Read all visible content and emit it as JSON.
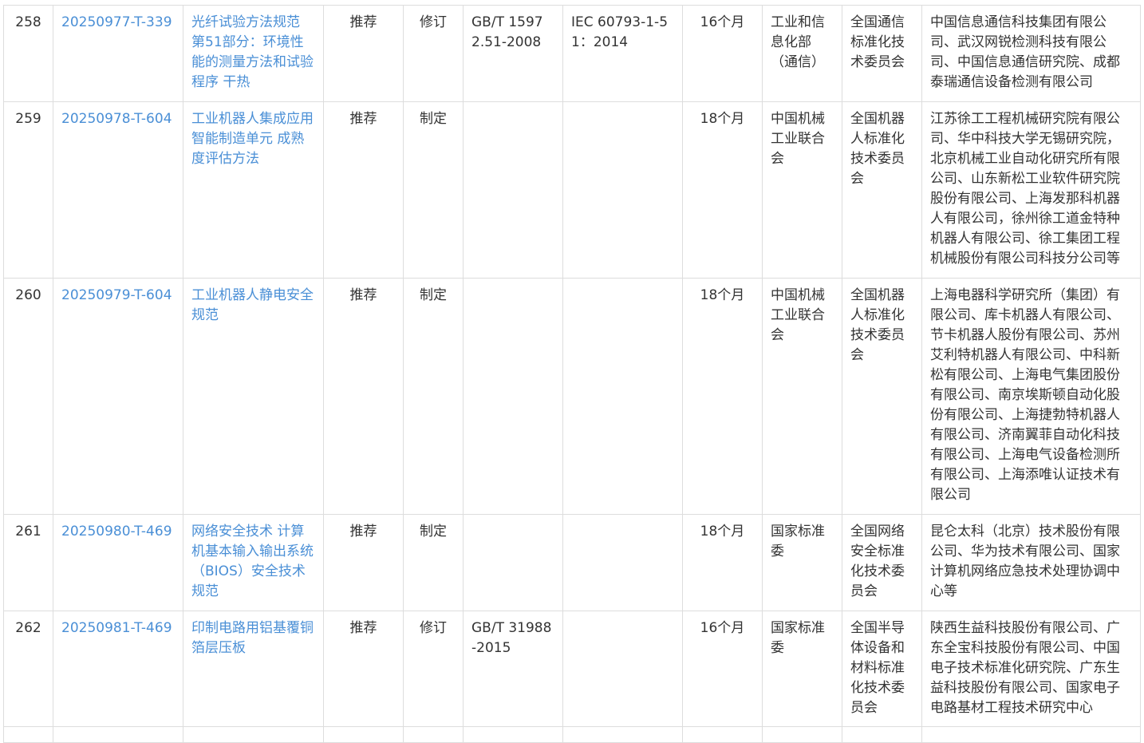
{
  "link_color": "#4a8fd6",
  "rows": [
    {
      "no": "258",
      "plan_no": "20250977-T-339",
      "name": "光纤试验方法规范 第51部分：环境性能的测量方法和试验程序 干热",
      "nature": "推荐",
      "type": "修订",
      "replaced": "GB/T 15972.51-2008",
      "adopted": "IEC 60793-1-51：2014",
      "period": "16个月",
      "dept": "工业和信息化部（通信）",
      "committee": "全国通信标准化技术委员会",
      "drafters": "中国信息通信科技集团有限公司、武汉网锐检测科技有限公司、中国信息通信研究院、成都泰瑞通信设备检测有限公司"
    },
    {
      "no": "259",
      "plan_no": "20250978-T-604",
      "name": "工业机器人集成应用 智能制造单元 成熟度评估方法",
      "nature": "推荐",
      "type": "制定",
      "replaced": "",
      "adopted": "",
      "period": "18个月",
      "dept": "中国机械工业联合会",
      "committee": "全国机器人标准化技术委员会",
      "drafters": "江苏徐工工程机械研究院有限公司、华中科技大学无锡研究院，北京机械工业自动化研究所有限公司、山东新松工业软件研究院股份有限公司、上海发那科机器人有限公司，徐州徐工道金特种机器人有限公司、徐工集团工程机械股份有限公司科技分公司等"
    },
    {
      "no": "260",
      "plan_no": "20250979-T-604",
      "name": "工业机器人静电安全规范",
      "nature": "推荐",
      "type": "制定",
      "replaced": "",
      "adopted": "",
      "period": "18个月",
      "dept": "中国机械工业联合会",
      "committee": "全国机器人标准化技术委员会",
      "drafters": "上海电器科学研究所（集团）有限公司、库卡机器人有限公司、节卡机器人股份有限公司、苏州艾利特机器人有限公司、中科新松有限公司、上海电气集团股份有限公司、南京埃斯顿自动化股份有限公司、上海捷勃特机器人有限公司、济南翼菲自动化科技有限公司、上海电气设备检测所有限公司、上海添唯认证技术有限公司"
    },
    {
      "no": "261",
      "plan_no": "20250980-T-469",
      "name": "网络安全技术 计算机基本输入输出系统（BIOS）安全技术规范",
      "nature": "推荐",
      "type": "制定",
      "replaced": "",
      "adopted": "",
      "period": "18个月",
      "dept": "国家标准委",
      "committee": "全国网络安全标准化技术委员会",
      "drafters": "昆仑太科（北京）技术股份有限公司、华为技术有限公司、国家计算机网络应急技术处理协调中心等"
    },
    {
      "no": "262",
      "plan_no": "20250981-T-469",
      "name": "印制电路用铝基覆铜箔层压板",
      "nature": "推荐",
      "type": "修订",
      "replaced": "GB/T 31988-2015",
      "adopted": "",
      "period": "16个月",
      "dept": "国家标准委",
      "committee": "全国半导体设备和材料标准化技术委员会",
      "drafters": "陕西生益科技股份有限公司、广东全宝科技股份有限公司、中国电子技术标准化研究院、广东生益科技股份有限公司、国家电子电路基材工程技术研究中心"
    }
  ]
}
